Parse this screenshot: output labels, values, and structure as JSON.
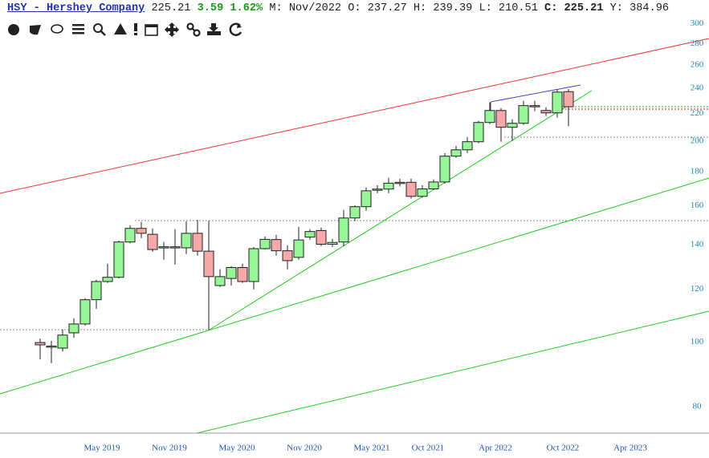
{
  "header": {
    "symbol": "HSY - Hershey Company",
    "last": "225.21",
    "change": "3.59 1.62%",
    "period": "M: Nov/2022",
    "open": "O: 237.27",
    "high": "H: 239.39",
    "low": "L: 210.51",
    "close": "C: 225.21",
    "yield": "Y: 384.96"
  },
  "chart_data": {
    "type": "candlestick",
    "log_scale": true,
    "up_color": "#98f598",
    "down_color": "#f6a9a9",
    "categories": [
      null,
      null,
      null,
      null,
      null,
      "May 2019",
      null,
      null,
      null,
      null,
      null,
      "Nov 2019",
      null,
      null,
      null,
      null,
      null,
      "May 2020",
      null,
      null,
      null,
      null,
      null,
      "Nov 2020",
      null,
      null,
      null,
      null,
      null,
      "May 2021",
      null,
      null,
      null,
      null,
      "Oct 2021",
      null,
      null,
      null,
      null,
      null,
      "Apr 2022",
      null,
      null,
      null,
      null,
      null,
      "Oct 2022",
      null,
      null,
      null,
      null,
      null,
      "Apr 2023"
    ],
    "open": [
      99.8,
      98.5,
      97.9,
      103.2,
      106.4,
      115.7,
      123.2,
      125.0,
      141.2,
      148.0,
      145.0,
      138.5,
      138.9,
      138.4,
      145.5,
      136.8,
      121.5,
      124.5,
      129.3,
      123.2,
      138.0,
      142.4,
      137.0,
      133.9,
      143.6,
      146.9,
      140.1,
      141.2,
      153.4,
      159.5,
      169.0,
      169.5,
      173.0,
      173.5,
      165.3,
      169.6,
      173.7,
      189.9,
      194.1,
      199.6,
      213.3,
      222.3,
      209.8,
      212.7,
      226.1,
      222.3,
      220.5,
      237.27,
      null,
      null,
      null,
      null,
      null
    ],
    "high": [
      101.2,
      100.4,
      104.4,
      108.5,
      116.3,
      123.9,
      131.0,
      141.9,
      149.6,
      151.3,
      148.0,
      141.2,
      147.6,
      151.7,
      152.4,
      152.0,
      128.6,
      129.9,
      131.0,
      138.8,
      143.9,
      144.7,
      139.6,
      148.8,
      147.6,
      148.4,
      142.7,
      157.7,
      160.3,
      170.4,
      171.8,
      176.2,
      175.7,
      175.7,
      171.8,
      175.2,
      191.9,
      196.8,
      202.9,
      214.5,
      228.6,
      224.2,
      215.7,
      229.8,
      229.8,
      224.8,
      239.0,
      239.39,
      null,
      null,
      null,
      null,
      null
    ],
    "low": [
      94.2,
      92.9,
      96.8,
      101.5,
      105.8,
      112.1,
      122.6,
      124.5,
      140.6,
      143.1,
      136.5,
      132.9,
      130.6,
      135.4,
      134.7,
      104.1,
      120.9,
      121.5,
      122.6,
      119.9,
      137.6,
      134.7,
      128.5,
      132.9,
      142.3,
      139.2,
      138.8,
      139.2,
      151.7,
      157.3,
      167.1,
      167.1,
      171.0,
      164.0,
      164.5,
      169.0,
      172.8,
      188.8,
      191.9,
      198.5,
      212.1,
      199.6,
      200.2,
      211.5,
      221.7,
      218.1,
      216.9,
      210.51,
      null,
      null,
      null,
      null,
      null
    ],
    "close": [
      99.0,
      98.6,
      102.4,
      106.4,
      115.7,
      123.2,
      125.0,
      141.2,
      148.0,
      145.5,
      137.6,
      138.9,
      138.5,
      145.5,
      136.8,
      125.3,
      125.3,
      129.3,
      123.2,
      138.0,
      142.5,
      137.0,
      132.4,
      142.2,
      146.4,
      140.1,
      141.0,
      153.4,
      159.5,
      168.5,
      169.5,
      173.0,
      173.5,
      165.3,
      169.6,
      173.7,
      189.9,
      194.1,
      199.6,
      213.3,
      222.3,
      209.8,
      212.7,
      226.1,
      225.5,
      220.5,
      236.9,
      225.21,
      null,
      null,
      null,
      null,
      null
    ],
    "ylim": [
      73,
      308
    ],
    "yticks": [
      80,
      100,
      120,
      140,
      160,
      180,
      200,
      220,
      240,
      260,
      280,
      300
    ]
  }
}
